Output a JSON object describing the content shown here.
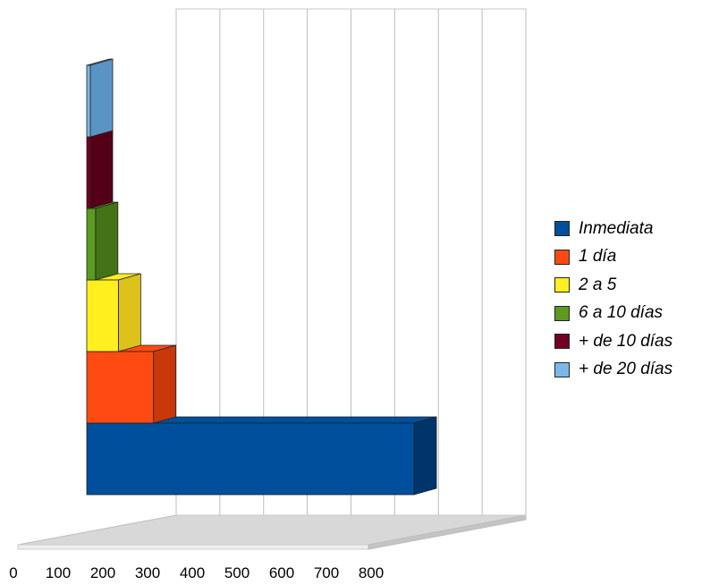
{
  "chart_data": {
    "type": "bar",
    "orientation": "horizontal",
    "style": "3d-stacked",
    "title": "",
    "xlabel": "",
    "ylabel": "",
    "xlim": [
      0,
      800
    ],
    "x_ticks": [
      0,
      100,
      200,
      300,
      400,
      500,
      600,
      700,
      800
    ],
    "grid": true,
    "legend_position": "right",
    "series": [
      {
        "name": "Inmediata",
        "value": 745,
        "color": "#004f9c",
        "side_color": "#00356b"
      },
      {
        "name": "1 día",
        "value": 152,
        "color": "#ff4a12",
        "side_color": "#c9380a"
      },
      {
        "name": "2 a 5",
        "value": 72,
        "color": "#ffef1e",
        "side_color": "#ddc21b"
      },
      {
        "name": "6 a 10 días",
        "value": 20,
        "color": "#5c9a20",
        "side_color": "#447217"
      },
      {
        "name": "+ de 10 días",
        "value": 5,
        "color": "#720024",
        "side_color": "#540019"
      },
      {
        "name": "+ de 20 días",
        "value": 2,
        "color": "#7ab8e8",
        "side_color": "#5a94c4"
      }
    ]
  }
}
